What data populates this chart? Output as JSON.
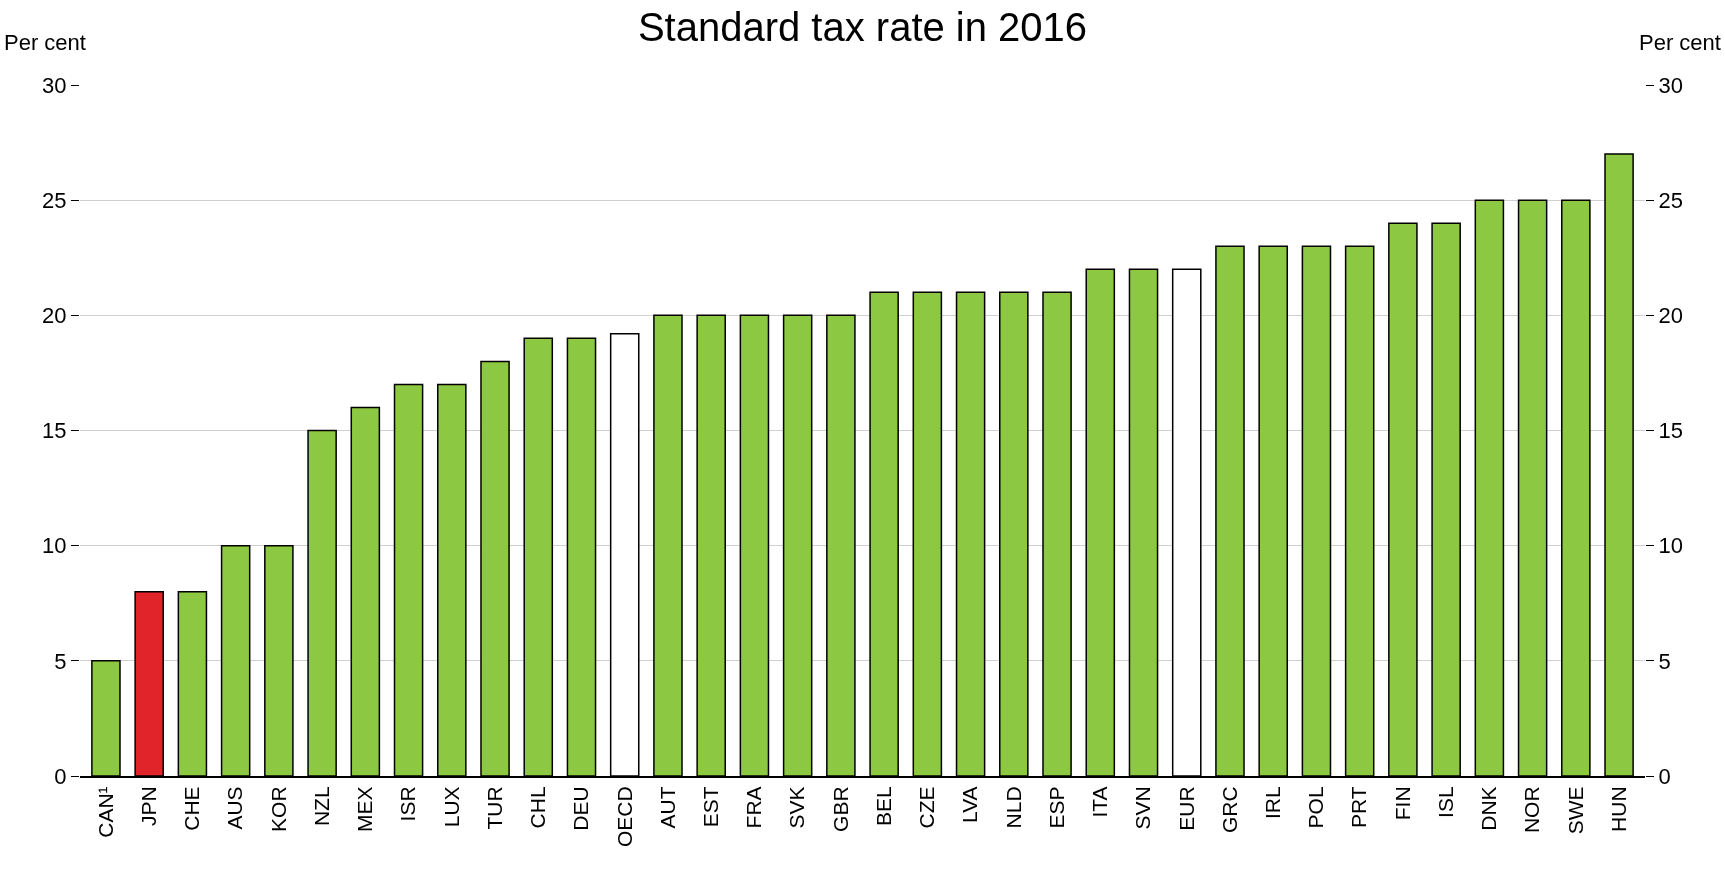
{
  "chart_data": {
    "type": "bar",
    "title": "Standard tax rate in 2016",
    "ylabel": "Per cent",
    "y2label": "Per cent",
    "categories": [
      "CAN¹",
      "JPN",
      "CHE",
      "AUS",
      "KOR",
      "NZL",
      "MEX",
      "ISR",
      "LUX",
      "TUR",
      "CHL",
      "DEU",
      "OECD",
      "AUT",
      "EST",
      "FRA",
      "SVK",
      "GBR",
      "BEL",
      "CZE",
      "LVA",
      "NLD",
      "ESP",
      "ITA",
      "SVN",
      "EUR",
      "GRC",
      "IRL",
      "POL",
      "PRT",
      "FIN",
      "ISL",
      "DNK",
      "NOR",
      "SWE",
      "HUN"
    ],
    "values": [
      5,
      8,
      8,
      10,
      10,
      15,
      16,
      17,
      17,
      18,
      19,
      19,
      19.2,
      20,
      20,
      20,
      20,
      20,
      21,
      21,
      21,
      21,
      21,
      22,
      22,
      22,
      23,
      23,
      23,
      23,
      24,
      24,
      25,
      25,
      25,
      27
    ],
    "colors": [
      "#8cc841",
      "#e0242a",
      "#8cc841",
      "#8cc841",
      "#8cc841",
      "#8cc841",
      "#8cc841",
      "#8cc841",
      "#8cc841",
      "#8cc841",
      "#8cc841",
      "#8cc841",
      "#ffffff",
      "#8cc841",
      "#8cc841",
      "#8cc841",
      "#8cc841",
      "#8cc841",
      "#8cc841",
      "#8cc841",
      "#8cc841",
      "#8cc841",
      "#8cc841",
      "#8cc841",
      "#8cc841",
      "#ffffff",
      "#8cc841",
      "#8cc841",
      "#8cc841",
      "#8cc841",
      "#8cc841",
      "#8cc841",
      "#8cc841",
      "#8cc841",
      "#8cc841",
      "#8cc841"
    ],
    "ylim": [
      0,
      30
    ],
    "yticks": [
      0,
      5,
      10,
      15,
      20,
      25,
      30
    ],
    "y2lim": [
      0,
      30
    ],
    "y2ticks": [
      0,
      5,
      10,
      15,
      20,
      25,
      30
    ],
    "grid": "y"
  }
}
